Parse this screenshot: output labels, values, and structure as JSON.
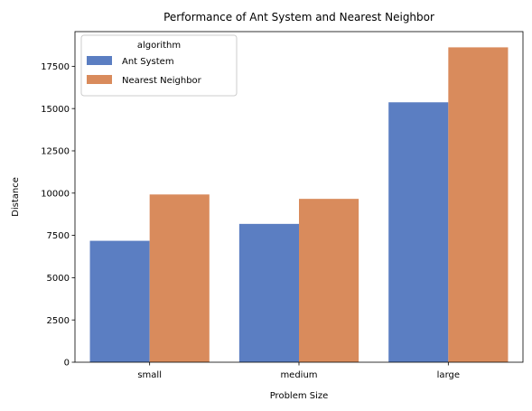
{
  "chart_data": {
    "type": "bar",
    "title": "Performance of Ant System and Nearest Neighbor",
    "xlabel": "Problem Size",
    "ylabel": "Distance",
    "categories": [
      "small",
      "medium",
      "large"
    ],
    "series": [
      {
        "name": "Ant System",
        "color": "#5b7ec2",
        "values": [
          7180,
          8180,
          15370
        ]
      },
      {
        "name": "Nearest Neighbor",
        "color": "#d98b5c",
        "values": [
          9920,
          9660,
          18620
        ]
      }
    ],
    "ylim": [
      0,
      19550
    ],
    "yticks": [
      0,
      2500,
      5000,
      7500,
      10000,
      12500,
      15000,
      17500
    ],
    "grid": false,
    "legend": {
      "title": "algorithm",
      "position": "top-left"
    }
  }
}
